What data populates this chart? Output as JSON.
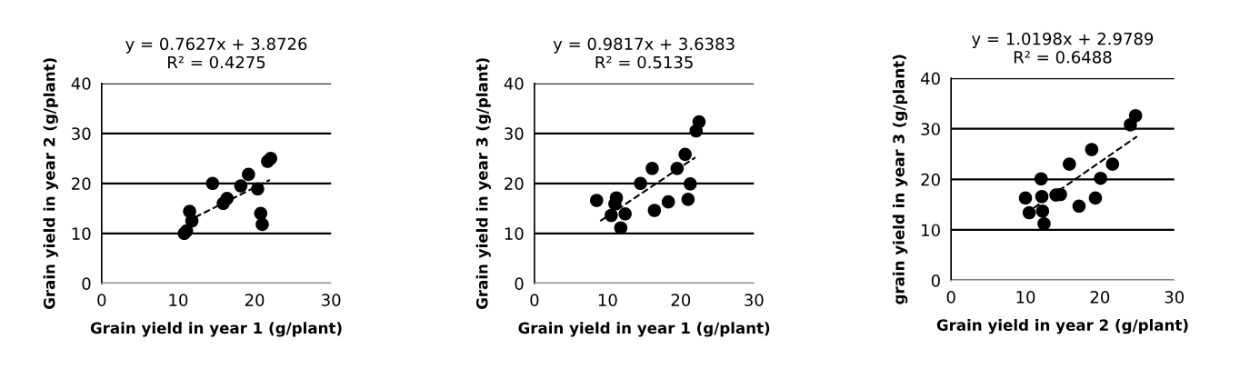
{
  "chart_data": [
    {
      "type": "scatter",
      "title": "y = 0.7627x + 3.8726\nR² = 0.4275",
      "xlabel": "Grain yield in year 1 (g/plant)",
      "ylabel": "Grain yield in year 2 (g/plant)",
      "xlim": [
        0,
        30
      ],
      "ylim": [
        0,
        40
      ],
      "xticks": [
        0,
        10,
        20,
        30
      ],
      "yticks": [
        0,
        10,
        20,
        30,
        40
      ],
      "grid": "y",
      "series": [
        {
          "color": "#000000",
          "marker": "circle",
          "x": [
            10.8,
            11.1,
            11.5,
            11.8,
            14.5,
            15.9,
            16.4,
            18.2,
            19.2,
            20.4,
            20.8,
            21.0,
            21.7,
            22.1
          ],
          "values": [
            10.0,
            10.5,
            14.4,
            12.5,
            20.0,
            16.0,
            17.0,
            19.5,
            21.8,
            18.9,
            14.0,
            11.8,
            24.4,
            25.0
          ]
        },
        {
          "type": "line",
          "color": "#000000",
          "line_style": "dashed",
          "x": [
            11,
            22
          ],
          "values": [
            12.3,
            20.7
          ]
        }
      ]
    },
    {
      "type": "scatter",
      "title": "y = 0.9817x + 3.6383\nR² = 0.5135",
      "xlabel": "Grain yield in year 1 (g/plant)",
      "ylabel": "Grain yield in year 3 (g/plant)",
      "xlim": [
        0,
        30
      ],
      "ylim": [
        0,
        40
      ],
      "xticks": [
        0,
        10,
        20,
        30
      ],
      "yticks": [
        0,
        10,
        20,
        30,
        40
      ],
      "grid": "y",
      "series": [
        {
          "color": "#000000",
          "marker": "circle",
          "x": [
            8.5,
            11.2,
            11.0,
            10.5,
            12.4,
            11.8,
            14.5,
            16.1,
            16.4,
            18.3,
            19.5,
            20.6,
            21.3,
            21.0,
            22.1,
            22.5
          ],
          "values": [
            16.6,
            17.1,
            15.9,
            13.6,
            13.9,
            11.1,
            20.0,
            23.0,
            14.6,
            16.3,
            23.0,
            25.8,
            19.9,
            16.8,
            30.5,
            32.3
          ]
        },
        {
          "type": "line",
          "color": "#000000",
          "line_style": "dashed",
          "x": [
            9,
            22
          ],
          "values": [
            12.5,
            25.2
          ]
        }
      ]
    },
    {
      "type": "scatter",
      "title": "y = 1.0198x + 2.9789\nR² = 0.6488",
      "xlabel": "Grain yield in year 2 (g/plant)",
      "ylabel": "grain yield in year 3 (g/plant)",
      "xlim": [
        0,
        30
      ],
      "ylim": [
        0,
        40
      ],
      "xticks": [
        0,
        10,
        20,
        30
      ],
      "yticks": [
        0,
        10,
        20,
        30,
        40
      ],
      "grid": "y",
      "series": [
        {
          "color": "#000000",
          "marker": "circle",
          "x": [
            10.0,
            10.5,
            12.1,
            12.2,
            12.3,
            12.5,
            14.1,
            14.7,
            15.9,
            17.2,
            18.9,
            19.4,
            20.1,
            21.7,
            24.1,
            24.8
          ],
          "values": [
            16.3,
            13.4,
            20.1,
            16.6,
            13.7,
            11.2,
            16.9,
            17.0,
            23.0,
            14.7,
            25.9,
            16.3,
            20.2,
            23.0,
            30.8,
            32.6
          ]
        },
        {
          "type": "line",
          "color": "#000000",
          "line_style": "dashed",
          "x": [
            10,
            25
          ],
          "values": [
            13.2,
            28.5
          ]
        }
      ]
    }
  ]
}
